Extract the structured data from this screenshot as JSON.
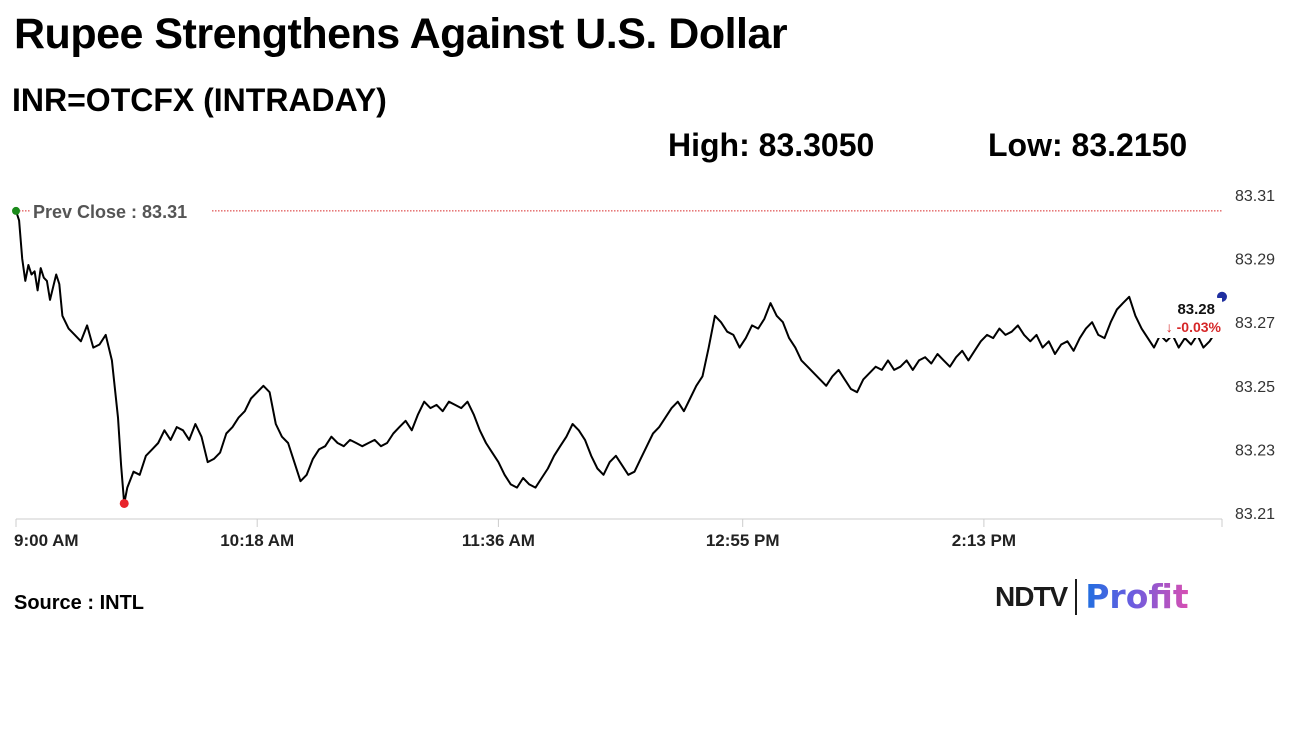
{
  "header": {
    "title": "Rupee Strengthens Against U.S. Dollar",
    "subtitle": "INR=OTCFX (INTRADAY)",
    "high_label": "High: 83.3050",
    "low_label": "Low: 83.2150"
  },
  "chart_data": {
    "type": "line",
    "x_ticks": [
      "9:00 AM",
      "10:18 AM",
      "11:36 AM",
      "12:55 PM",
      "2:13 PM"
    ],
    "x_tick_minutes": [
      0,
      78,
      156,
      235,
      313
    ],
    "x_range_minutes": [
      0,
      390
    ],
    "y_ticks": [
      "83.31",
      "83.29",
      "83.27",
      "83.25",
      "83.23",
      "83.21"
    ],
    "ylim": [
      83.21,
      83.31
    ],
    "grid": false,
    "prev_close": {
      "label": "Prev Close : 83.31",
      "value": 83.305,
      "color": "#d62728"
    },
    "last": {
      "price_label": "83.28",
      "change_label": "↓ -0.03%",
      "value": 83.278,
      "minute": 390,
      "color": "#1f2fa0",
      "change_color": "#d62728"
    },
    "low_point": {
      "minute": 35,
      "value": 83.213,
      "color": "#e8242b"
    },
    "open_point": {
      "minute": 0,
      "value": 83.305,
      "color": "#1a8a1a"
    },
    "series": [
      {
        "line_color": "#000000",
        "points": [
          [
            0,
            83.305
          ],
          [
            1,
            83.302
          ],
          [
            2,
            83.29
          ],
          [
            3,
            83.283
          ],
          [
            4,
            83.288
          ],
          [
            5,
            83.285
          ],
          [
            6,
            83.286
          ],
          [
            7,
            83.28
          ],
          [
            8,
            83.287
          ],
          [
            9,
            83.284
          ],
          [
            10,
            83.283
          ],
          [
            11,
            83.277
          ],
          [
            12,
            83.281
          ],
          [
            13,
            83.285
          ],
          [
            14,
            83.282
          ],
          [
            15,
            83.272
          ],
          [
            17,
            83.268
          ],
          [
            19,
            83.266
          ],
          [
            21,
            83.264
          ],
          [
            23,
            83.269
          ],
          [
            25,
            83.262
          ],
          [
            27,
            83.263
          ],
          [
            29,
            83.266
          ],
          [
            31,
            83.258
          ],
          [
            33,
            83.24
          ],
          [
            34,
            83.225
          ],
          [
            35,
            83.213
          ],
          [
            36,
            83.218
          ],
          [
            38,
            83.223
          ],
          [
            40,
            83.222
          ],
          [
            42,
            83.228
          ],
          [
            44,
            83.23
          ],
          [
            46,
            83.232
          ],
          [
            48,
            83.236
          ],
          [
            50,
            83.233
          ],
          [
            52,
            83.237
          ],
          [
            54,
            83.236
          ],
          [
            56,
            83.233
          ],
          [
            58,
            83.238
          ],
          [
            60,
            83.234
          ],
          [
            62,
            83.226
          ],
          [
            64,
            83.227
          ],
          [
            66,
            83.229
          ],
          [
            68,
            83.235
          ],
          [
            70,
            83.237
          ],
          [
            72,
            83.24
          ],
          [
            74,
            83.242
          ],
          [
            76,
            83.246
          ],
          [
            78,
            83.248
          ],
          [
            80,
            83.25
          ],
          [
            82,
            83.248
          ],
          [
            84,
            83.238
          ],
          [
            86,
            83.234
          ],
          [
            88,
            83.232
          ],
          [
            90,
            83.226
          ],
          [
            92,
            83.22
          ],
          [
            94,
            83.222
          ],
          [
            96,
            83.227
          ],
          [
            98,
            83.23
          ],
          [
            100,
            83.231
          ],
          [
            102,
            83.234
          ],
          [
            104,
            83.232
          ],
          [
            106,
            83.231
          ],
          [
            108,
            83.233
          ],
          [
            110,
            83.232
          ],
          [
            112,
            83.231
          ],
          [
            114,
            83.232
          ],
          [
            116,
            83.233
          ],
          [
            118,
            83.231
          ],
          [
            120,
            83.232
          ],
          [
            122,
            83.235
          ],
          [
            124,
            83.237
          ],
          [
            126,
            83.239
          ],
          [
            128,
            83.236
          ],
          [
            130,
            83.241
          ],
          [
            132,
            83.245
          ],
          [
            134,
            83.243
          ],
          [
            136,
            83.244
          ],
          [
            138,
            83.242
          ],
          [
            140,
            83.245
          ],
          [
            142,
            83.244
          ],
          [
            144,
            83.243
          ],
          [
            146,
            83.245
          ],
          [
            148,
            83.241
          ],
          [
            150,
            83.236
          ],
          [
            152,
            83.232
          ],
          [
            154,
            83.229
          ],
          [
            156,
            83.226
          ],
          [
            158,
            83.222
          ],
          [
            160,
            83.219
          ],
          [
            162,
            83.218
          ],
          [
            164,
            83.221
          ],
          [
            166,
            83.219
          ],
          [
            168,
            83.218
          ],
          [
            170,
            83.221
          ],
          [
            172,
            83.224
          ],
          [
            174,
            83.228
          ],
          [
            176,
            83.231
          ],
          [
            178,
            83.234
          ],
          [
            180,
            83.238
          ],
          [
            182,
            83.236
          ],
          [
            184,
            83.233
          ],
          [
            186,
            83.228
          ],
          [
            188,
            83.224
          ],
          [
            190,
            83.222
          ],
          [
            192,
            83.226
          ],
          [
            194,
            83.228
          ],
          [
            196,
            83.225
          ],
          [
            198,
            83.222
          ],
          [
            200,
            83.223
          ],
          [
            202,
            83.227
          ],
          [
            204,
            83.231
          ],
          [
            206,
            83.235
          ],
          [
            208,
            83.237
          ],
          [
            210,
            83.24
          ],
          [
            212,
            83.243
          ],
          [
            214,
            83.245
          ],
          [
            216,
            83.242
          ],
          [
            218,
            83.246
          ],
          [
            220,
            83.25
          ],
          [
            222,
            83.253
          ],
          [
            224,
            83.262
          ],
          [
            226,
            83.272
          ],
          [
            228,
            83.27
          ],
          [
            230,
            83.267
          ],
          [
            232,
            83.266
          ],
          [
            234,
            83.262
          ],
          [
            236,
            83.265
          ],
          [
            238,
            83.269
          ],
          [
            240,
            83.268
          ],
          [
            242,
            83.271
          ],
          [
            244,
            83.276
          ],
          [
            246,
            83.272
          ],
          [
            248,
            83.27
          ],
          [
            250,
            83.265
          ],
          [
            252,
            83.262
          ],
          [
            254,
            83.258
          ],
          [
            256,
            83.256
          ],
          [
            258,
            83.254
          ],
          [
            260,
            83.252
          ],
          [
            262,
            83.25
          ],
          [
            264,
            83.253
          ],
          [
            266,
            83.255
          ],
          [
            268,
            83.252
          ],
          [
            270,
            83.249
          ],
          [
            272,
            83.248
          ],
          [
            274,
            83.252
          ],
          [
            276,
            83.254
          ],
          [
            278,
            83.256
          ],
          [
            280,
            83.255
          ],
          [
            282,
            83.258
          ],
          [
            284,
            83.255
          ],
          [
            286,
            83.256
          ],
          [
            288,
            83.258
          ],
          [
            290,
            83.255
          ],
          [
            292,
            83.258
          ],
          [
            294,
            83.259
          ],
          [
            296,
            83.257
          ],
          [
            298,
            83.26
          ],
          [
            300,
            83.258
          ],
          [
            302,
            83.256
          ],
          [
            304,
            83.259
          ],
          [
            306,
            83.261
          ],
          [
            308,
            83.258
          ],
          [
            310,
            83.261
          ],
          [
            312,
            83.264
          ],
          [
            314,
            83.266
          ],
          [
            316,
            83.265
          ],
          [
            318,
            83.268
          ],
          [
            320,
            83.266
          ],
          [
            322,
            83.267
          ],
          [
            324,
            83.269
          ],
          [
            326,
            83.266
          ],
          [
            328,
            83.264
          ],
          [
            330,
            83.266
          ],
          [
            332,
            83.262
          ],
          [
            334,
            83.264
          ],
          [
            336,
            83.26
          ],
          [
            338,
            83.263
          ],
          [
            340,
            83.264
          ],
          [
            342,
            83.261
          ],
          [
            344,
            83.265
          ],
          [
            346,
            83.268
          ],
          [
            348,
            83.27
          ],
          [
            350,
            83.266
          ],
          [
            352,
            83.265
          ],
          [
            354,
            83.27
          ],
          [
            356,
            83.274
          ],
          [
            358,
            83.276
          ],
          [
            360,
            83.278
          ],
          [
            362,
            83.272
          ],
          [
            364,
            83.268
          ],
          [
            366,
            83.265
          ],
          [
            368,
            83.262
          ],
          [
            370,
            83.266
          ],
          [
            372,
            83.264
          ],
          [
            374,
            83.266
          ],
          [
            376,
            83.262
          ],
          [
            378,
            83.265
          ],
          [
            380,
            83.263
          ],
          [
            382,
            83.266
          ],
          [
            384,
            83.262
          ],
          [
            386,
            83.264
          ],
          [
            388,
            83.267
          ],
          [
            390,
            83.278
          ]
        ]
      }
    ]
  },
  "footer": {
    "source_label": "Source : INTL",
    "logo_ndtv": "NDTV",
    "logo_profit": "Profit"
  }
}
